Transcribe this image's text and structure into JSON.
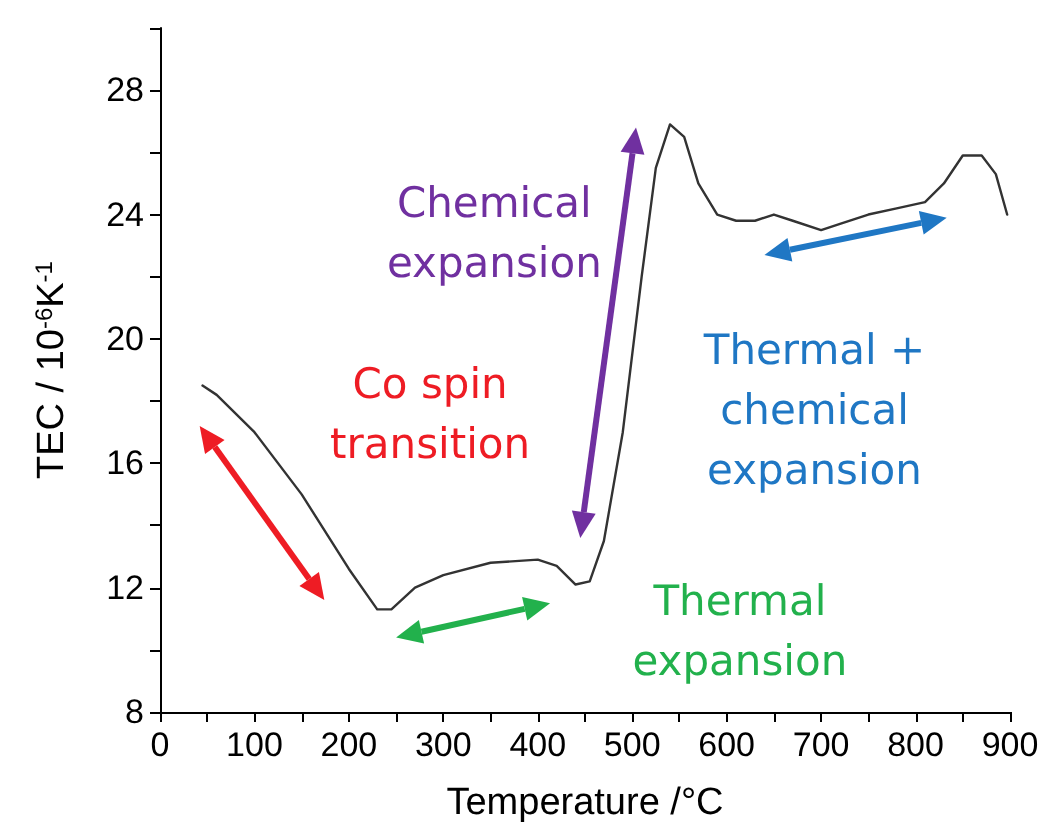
{
  "chart_data": {
    "type": "line",
    "xlabel": "Temperature /°C",
    "ylabel": "TEC / 10$^{-6}$K$^{-1}$",
    "x": [
      45,
      60,
      100,
      150,
      200,
      230,
      245,
      270,
      300,
      350,
      400,
      420,
      440,
      455,
      470,
      490,
      510,
      525,
      540,
      555,
      570,
      590,
      610,
      630,
      650,
      670,
      700,
      720,
      750,
      780,
      810,
      830,
      850,
      870,
      885,
      897
    ],
    "series": [
      {
        "color": "#333333",
        "values": [
          18.5,
          18.2,
          17,
          15,
          12.6,
          11.3,
          11.3,
          12,
          12.4,
          12.8,
          12.9,
          12.7,
          12.1,
          12.2,
          13.5,
          17,
          22,
          25.5,
          26.9,
          26.5,
          25,
          24,
          23.8,
          23.8,
          24,
          23.8,
          23.5,
          23.7,
          24,
          24.2,
          24.4,
          25,
          25.9,
          25.9,
          25.3,
          24
        ]
      }
    ],
    "xlim": [
      0,
      900
    ],
    "xticks": [
      0,
      {
        "value": 50,
        "label": null
      },
      100,
      {
        "value": 150,
        "label": null
      },
      200,
      {
        "value": 250,
        "label": null
      },
      300,
      {
        "value": 350,
        "label": null
      },
      400,
      {
        "value": 450,
        "label": null
      },
      500,
      {
        "value": 550,
        "label": null
      },
      600,
      {
        "value": 650,
        "label": null
      },
      700,
      {
        "value": 750,
        "label": null
      },
      800,
      {
        "value": 850,
        "label": null
      },
      900
    ],
    "ylim": [
      8,
      30
    ],
    "yticks": [
      8,
      {
        "value": 10,
        "label": null
      },
      12,
      {
        "value": 14,
        "label": null
      },
      16,
      {
        "value": 18,
        "label": null
      },
      20,
      {
        "value": 22,
        "label": null
      },
      24,
      {
        "value": 26,
        "label": null
      },
      28,
      {
        "value": 30,
        "label": null
      }
    ],
    "grid": false,
    "marker": "none",
    "line_style": "solid",
    "annotations": [
      "Co spin\ntransition",
      "Chemical\nexpansion",
      "Thermal +\nchemical\nexpansion",
      "Thermal\nexpansion"
    ]
  }
}
